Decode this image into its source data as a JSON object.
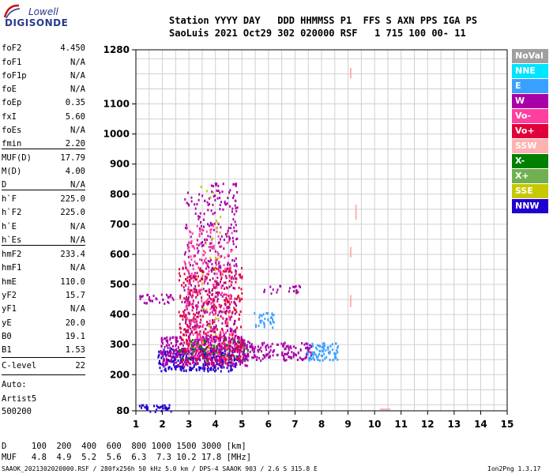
{
  "logo": {
    "top": "Lowell",
    "bottom": "DIGISONDE"
  },
  "header": {
    "line1": "Station YYYY DAY   DDD HHMMSS P1  FFS S AXN PPS IGA PS",
    "line2": "SaoLuis 2021 Oct29 302 020000 RSF   1 715 100 00- 11"
  },
  "scaled_params": [
    {
      "key": "foF2",
      "value": "4.450"
    },
    {
      "key": "foF1",
      "value": "N/A"
    },
    {
      "key": "foF1p",
      "value": "N/A"
    },
    {
      "key": "foE",
      "value": "N/A"
    },
    {
      "key": "foEp",
      "value": "0.35"
    },
    {
      "key": "fxI",
      "value": "5.60"
    },
    {
      "key": "foEs",
      "value": "N/A"
    },
    {
      "key": "fmin",
      "value": "2.20"
    },
    {
      "key": "MUF(D)",
      "value": "17.79"
    },
    {
      "key": "M(D)",
      "value": "4.00"
    },
    {
      "key": "D",
      "value": "N/A"
    },
    {
      "key": "h`F",
      "value": "225.0"
    },
    {
      "key": "h`F2",
      "value": "225.0"
    },
    {
      "key": "h`E",
      "value": "N/A"
    },
    {
      "key": "h`Es",
      "value": "N/A"
    },
    {
      "key": "hmF2",
      "value": "233.4"
    },
    {
      "key": "hmF1",
      "value": "N/A"
    },
    {
      "key": "hmE",
      "value": "110.0"
    },
    {
      "key": "yF2",
      "value": "15.7"
    },
    {
      "key": "yF1",
      "value": "N/A"
    },
    {
      "key": "yE",
      "value": "20.0"
    },
    {
      "key": "B0",
      "value": "19.1"
    },
    {
      "key": "B1",
      "value": "1.53"
    },
    {
      "key": "C-level",
      "value": "22"
    }
  ],
  "auto_block": [
    "Auto:",
    "Artist5",
    "500200"
  ],
  "legend": [
    {
      "label": "NoVal",
      "color": "#a0a0a0"
    },
    {
      "label": "NNE",
      "color": "#00e5ff"
    },
    {
      "label": "E",
      "color": "#3aa0ff"
    },
    {
      "label": "W",
      "color": "#a800a8"
    },
    {
      "label": "Vo-",
      "color": "#ff3fa0"
    },
    {
      "label": "Vo+",
      "color": "#e0003a"
    },
    {
      "label": "SSW",
      "color": "#ffb0b0"
    },
    {
      "label": "X-",
      "color": "#008000"
    },
    {
      "label": "X+",
      "color": "#70b050"
    },
    {
      "label": "SSE",
      "color": "#c8c800"
    },
    {
      "label": "NNW",
      "color": "#2000d0"
    }
  ],
  "distance_table": {
    "d_line": "D     100  200  400  600  800 1000 1500 3000 [km]",
    "muf_line": "MUF   4.8  4.9  5.2  5.6  6.3  7.3 10.2 17.8 [MHz]"
  },
  "footer": {
    "left": "SAAOK_2021302020000.RSF / 280fx256h 50 kHz 5.0 km / DPS-4 SAAOK 903 / 2.6 S 315.8 E",
    "right": "Ion2Png 1.3.17"
  },
  "chart_data": {
    "type": "scatter",
    "title": "",
    "xlabel": "",
    "ylabel": "",
    "xlim": [
      1,
      15
    ],
    "ylim": [
      80,
      1280
    ],
    "x_ticks": [
      1,
      2,
      3,
      4,
      5,
      6,
      7,
      8,
      9,
      10,
      11,
      12,
      13,
      14,
      15
    ],
    "y_ticks": [
      80,
      200,
      300,
      400,
      500,
      600,
      700,
      800,
      900,
      1000,
      1100,
      1280
    ],
    "grid": true,
    "x_units": "MHz",
    "y_units": "km",
    "clusters": [
      {
        "series": "NNW",
        "x": [
          1.8,
          4.8
        ],
        "y": [
          215,
          290
        ],
        "density": 0.9
      },
      {
        "series": "W",
        "x": [
          1.9,
          5.2
        ],
        "y": [
          230,
          330
        ],
        "density": 0.9
      },
      {
        "series": "Vo+",
        "x": [
          2.6,
          5.0
        ],
        "y": [
          240,
          560
        ],
        "density": 0.4
      },
      {
        "series": "W",
        "x": [
          2.8,
          4.8
        ],
        "y": [
          300,
          840
        ],
        "density": 0.25
      },
      {
        "series": "Vo-",
        "x": [
          2.8,
          4.6
        ],
        "y": [
          260,
          700
        ],
        "density": 0.2
      },
      {
        "series": "E",
        "x": [
          5.4,
          6.2
        ],
        "y": [
          360,
          410
        ],
        "density": 0.6
      },
      {
        "series": "E",
        "x": [
          7.4,
          8.6
        ],
        "y": [
          250,
          310
        ],
        "density": 0.8
      },
      {
        "series": "W",
        "x": [
          5.0,
          7.6
        ],
        "y": [
          250,
          310
        ],
        "density": 0.7
      },
      {
        "series": "W",
        "x": [
          1.1,
          2.4
        ],
        "y": [
          440,
          470
        ],
        "density": 0.6
      },
      {
        "series": "NNW",
        "x": [
          1.1,
          2.3
        ],
        "y": [
          80,
          105
        ],
        "density": 0.8
      },
      {
        "series": "W",
        "x": [
          5.8,
          7.2
        ],
        "y": [
          470,
          500
        ],
        "density": 0.4
      },
      {
        "series": "X-",
        "x": [
          2.6,
          5.2
        ],
        "y": [
          250,
          320
        ],
        "density": 0.15
      },
      {
        "series": "SSE",
        "x": [
          3.4,
          4.2
        ],
        "y": [
          260,
          830
        ],
        "density": 0.04
      }
    ],
    "strips": [
      {
        "series": "SSW",
        "x": 9.1,
        "y": [
          1185,
          1220
        ]
      },
      {
        "series": "SSW",
        "x": 9.3,
        "y": [
          715,
          765
        ]
      },
      {
        "series": "SSW",
        "x": 9.1,
        "y": [
          590,
          625
        ]
      },
      {
        "series": "SSW",
        "x": 9.1,
        "y": [
          425,
          465
        ]
      },
      {
        "series": "SSW",
        "x": [
          10.2,
          10.6
        ],
        "y": 85
      }
    ]
  }
}
